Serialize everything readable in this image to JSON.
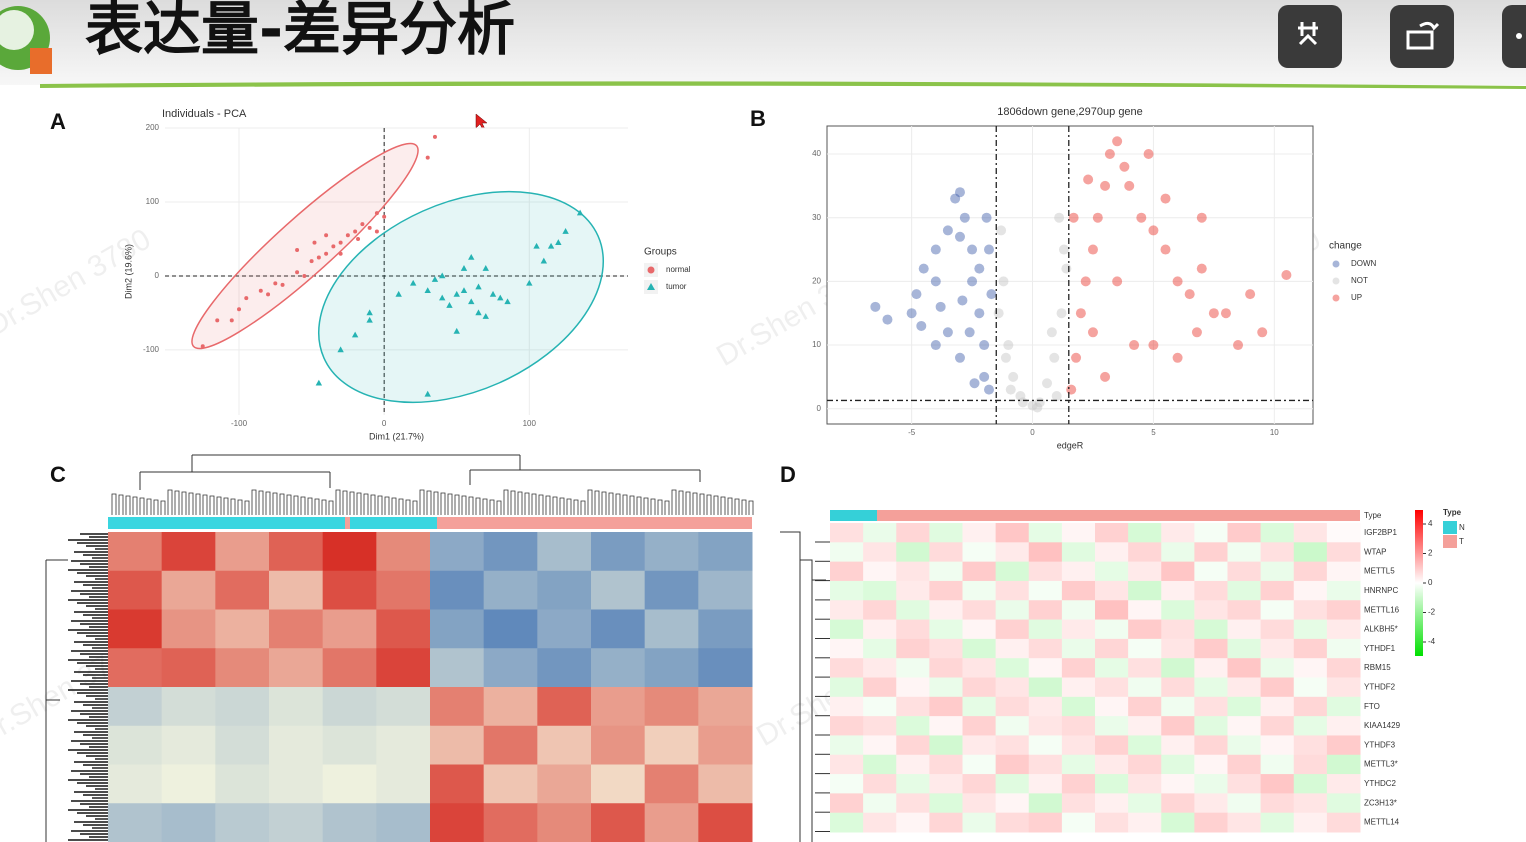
{
  "header": {
    "title": "表达量-差异分析"
  },
  "watermark": "Dr.Shen 3780",
  "panel_a": {
    "label": "A",
    "type": "scatter",
    "title": "Individuals - PCA",
    "xlabel": "Dim1 (21.7%)",
    "ylabel": "Dim2 (19.6%)",
    "xlim": [
      -151,
      168
    ],
    "ylim": [
      -188,
      200
    ],
    "xticks": [
      -100,
      0,
      100
    ],
    "yticks": [
      -100,
      0,
      100,
      200
    ],
    "grid": true,
    "legend_title": "Groups",
    "series": [
      {
        "name": "normal",
        "color": "#e8696b",
        "marker": "circle",
        "points": [
          [
            -125,
            -95
          ],
          [
            -115,
            -60
          ],
          [
            -105,
            -60
          ],
          [
            -100,
            -45
          ],
          [
            -85,
            -20
          ],
          [
            -80,
            -25
          ],
          [
            -75,
            -10
          ],
          [
            -60,
            5
          ],
          [
            -55,
            0
          ],
          [
            -50,
            20
          ],
          [
            -45,
            25
          ],
          [
            -40,
            30
          ],
          [
            -35,
            40
          ],
          [
            -30,
            45
          ],
          [
            -25,
            55
          ],
          [
            -20,
            60
          ],
          [
            -15,
            70
          ],
          [
            -10,
            65
          ],
          [
            -5,
            85
          ],
          [
            0,
            80
          ],
          [
            -30,
            30
          ],
          [
            -60,
            35
          ],
          [
            -40,
            55
          ],
          [
            30,
            160
          ],
          [
            35,
            188
          ],
          [
            -18,
            50
          ],
          [
            -48,
            45
          ],
          [
            -70,
            -12
          ],
          [
            -95,
            -30
          ],
          [
            -5,
            60
          ]
        ]
      },
      {
        "name": "tumor",
        "color": "#26b3b3",
        "marker": "triangle",
        "points": [
          [
            -45,
            -145
          ],
          [
            -30,
            -100
          ],
          [
            -20,
            -80
          ],
          [
            -10,
            -60
          ],
          [
            10,
            -25
          ],
          [
            20,
            -10
          ],
          [
            30,
            -20
          ],
          [
            35,
            -5
          ],
          [
            40,
            -30
          ],
          [
            45,
            -40
          ],
          [
            50,
            -25
          ],
          [
            55,
            -20
          ],
          [
            60,
            -35
          ],
          [
            65,
            -15
          ],
          [
            70,
            -55
          ],
          [
            75,
            -25
          ],
          [
            80,
            -30
          ],
          [
            55,
            10
          ],
          [
            60,
            25
          ],
          [
            65,
            -50
          ],
          [
            100,
            -10
          ],
          [
            110,
            20
          ],
          [
            115,
            40
          ],
          [
            120,
            45
          ],
          [
            135,
            85
          ],
          [
            125,
            60
          ],
          [
            105,
            40
          ],
          [
            50,
            -75
          ],
          [
            30,
            -160
          ],
          [
            -10,
            -50
          ],
          [
            40,
            0
          ],
          [
            85,
            -35
          ],
          [
            70,
            10
          ]
        ]
      }
    ]
  },
  "panel_b": {
    "label": "B",
    "type": "scatter",
    "title": "1806down gene,2970up gene",
    "xlabel": "edgeR",
    "xlim": [
      -8.5,
      11.6
    ],
    "ylim": [
      -2.4,
      44.4
    ],
    "xticks": [
      -5,
      0,
      5,
      10
    ],
    "yticks": [
      0,
      10,
      20,
      30,
      40
    ],
    "vlines": [
      -1.5,
      1.5
    ],
    "hline": 1.3,
    "grid": true,
    "legend_title": "change",
    "series": [
      {
        "name": "DOWN",
        "color": "#3b5ba9",
        "marker": "circle",
        "points": [
          [
            -6.5,
            16
          ],
          [
            -6,
            14
          ],
          [
            -5,
            15
          ],
          [
            -4.8,
            18
          ],
          [
            -4.5,
            22
          ],
          [
            -4,
            20
          ],
          [
            -4,
            25
          ],
          [
            -3.5,
            28
          ],
          [
            -3.2,
            33
          ],
          [
            -3,
            34
          ],
          [
            -3,
            27
          ],
          [
            -2.8,
            30
          ],
          [
            -2.5,
            25
          ],
          [
            -2.5,
            20
          ],
          [
            -2.2,
            15
          ],
          [
            -2,
            10
          ],
          [
            -2,
            5
          ],
          [
            -1.8,
            3
          ],
          [
            -3.5,
            12
          ],
          [
            -3,
            8
          ],
          [
            -4,
            10
          ],
          [
            -2.6,
            12
          ],
          [
            -2.2,
            22
          ],
          [
            -1.8,
            25
          ],
          [
            -1.7,
            18
          ],
          [
            -3.8,
            16
          ],
          [
            -2.4,
            4
          ],
          [
            -2.9,
            17
          ],
          [
            -1.9,
            30
          ],
          [
            -4.6,
            13
          ]
        ]
      },
      {
        "name": "NOT",
        "color": "#c4c4c4",
        "marker": "circle",
        "points": [
          [
            -1.2,
            20
          ],
          [
            -1,
            10
          ],
          [
            -0.8,
            5
          ],
          [
            -0.5,
            2
          ],
          [
            0,
            0.5
          ],
          [
            0.3,
            1
          ],
          [
            0.6,
            4
          ],
          [
            0.9,
            8
          ],
          [
            1.2,
            15
          ],
          [
            1.3,
            25
          ],
          [
            1.1,
            30
          ],
          [
            -1.3,
            28
          ],
          [
            -1.4,
            15
          ],
          [
            -0.9,
            3
          ],
          [
            0.2,
            0.2
          ],
          [
            1.4,
            22
          ],
          [
            -0.4,
            1
          ],
          [
            0.8,
            12
          ],
          [
            -1.1,
            8
          ],
          [
            1,
            2
          ]
        ]
      },
      {
        "name": "UP",
        "color": "#e8332a",
        "marker": "circle",
        "points": [
          [
            1.6,
            3
          ],
          [
            1.8,
            8
          ],
          [
            2,
            15
          ],
          [
            2.2,
            20
          ],
          [
            2.5,
            25
          ],
          [
            2.7,
            30
          ],
          [
            3,
            35
          ],
          [
            3.2,
            40
          ],
          [
            3.5,
            42
          ],
          [
            3.8,
            38
          ],
          [
            4,
            35
          ],
          [
            4.5,
            30
          ],
          [
            5,
            28
          ],
          [
            5.5,
            25
          ],
          [
            6,
            20
          ],
          [
            6.5,
            18
          ],
          [
            7,
            22
          ],
          [
            7.5,
            15
          ],
          [
            8,
            15
          ],
          [
            9,
            18
          ],
          [
            9.5,
            12
          ],
          [
            10.5,
            21
          ],
          [
            4.2,
            10
          ],
          [
            3,
            5
          ],
          [
            5,
            10
          ],
          [
            6,
            8
          ],
          [
            2.5,
            12
          ],
          [
            7,
            30
          ],
          [
            5.5,
            33
          ],
          [
            3.5,
            20
          ],
          [
            8.5,
            10
          ],
          [
            1.7,
            30
          ],
          [
            2.3,
            36
          ],
          [
            4.8,
            40
          ],
          [
            6.8,
            12
          ]
        ]
      }
    ]
  },
  "panel_c": {
    "label": "C",
    "type": "heatmap",
    "colors": [
      "#4575b4",
      "#f7f7e0",
      "#d73027"
    ],
    "range": [
      -2,
      2
    ],
    "values": [
      [
        1.2,
        1.8,
        0.9,
        1.5,
        2.0,
        1.1,
        -1.2,
        -1.5,
        -0.9,
        -1.4,
        -1.1,
        -1.3
      ],
      [
        1.6,
        0.8,
        1.4,
        0.6,
        1.7,
        1.3,
        -1.6,
        -1.1,
        -1.3,
        -0.8,
        -1.5,
        -1.0
      ],
      [
        1.9,
        1.0,
        0.7,
        1.2,
        0.9,
        1.6,
        -1.3,
        -1.7,
        -1.2,
        -1.6,
        -0.9,
        -1.4
      ],
      [
        1.4,
        1.5,
        1.1,
        0.8,
        1.3,
        1.8,
        -0.8,
        -1.2,
        -1.5,
        -1.1,
        -1.3,
        -1.6
      ],
      [
        -0.6,
        -0.4,
        -0.5,
        -0.3,
        -0.5,
        -0.4,
        1.2,
        0.7,
        1.5,
        0.9,
        1.1,
        0.8
      ],
      [
        -0.3,
        -0.2,
        -0.4,
        -0.2,
        -0.3,
        -0.2,
        0.6,
        1.3,
        0.5,
        1.0,
        0.4,
        0.9
      ],
      [
        -0.2,
        -0.1,
        -0.3,
        -0.2,
        -0.1,
        -0.2,
        1.6,
        0.5,
        0.8,
        0.3,
        1.2,
        0.6
      ],
      [
        -0.8,
        -0.9,
        -0.7,
        -0.6,
        -0.8,
        -0.9,
        1.8,
        1.4,
        1.1,
        1.6,
        0.9,
        1.7
      ]
    ]
  },
  "panel_d": {
    "label": "D",
    "type": "heatmap",
    "annotation_label": "Type",
    "rows": [
      "IGF2BP1",
      "WTAP",
      "METTL5",
      "HNRNPC",
      "METTL16",
      "ALKBH5*",
      "YTHDF1",
      "RBM15",
      "YTHDF2",
      "FTO",
      "KIAA1429",
      "YTHDF3",
      "METTL3*",
      "YTHDC2",
      "ZC3H13*",
      "METTL14"
    ],
    "values": [
      [
        0.6,
        -0.4,
        0.8,
        -0.6,
        0.3,
        1.1,
        -0.5,
        0.2,
        0.9,
        -0.8,
        0.4,
        -0.2,
        1.0,
        -0.7,
        0.5,
        0.1
      ],
      [
        -0.3,
        0.5,
        -0.9,
        0.7,
        -0.2,
        0.4,
        1.2,
        -0.6,
        0.3,
        0.8,
        -0.4,
        0.9,
        -0.3,
        0.6,
        -1.0,
        0.7
      ],
      [
        0.9,
        0.2,
        0.5,
        -0.3,
        1.0,
        -0.8,
        0.6,
        0.3,
        -0.5,
        0.4,
        1.1,
        -0.2,
        0.7,
        -0.4,
        0.8,
        0.2
      ],
      [
        -0.5,
        -0.7,
        0.4,
        0.9,
        -0.3,
        0.6,
        -0.2,
        1.0,
        0.5,
        -0.9,
        0.3,
        0.7,
        -0.6,
        0.9,
        0.2,
        -0.4
      ],
      [
        0.4,
        0.8,
        -0.6,
        0.3,
        0.7,
        -0.4,
        0.9,
        -0.3,
        1.2,
        0.2,
        -0.7,
        0.5,
        0.8,
        -0.2,
        0.6,
        0.9
      ],
      [
        -0.8,
        0.3,
        0.7,
        -0.5,
        0.2,
        0.9,
        -0.6,
        0.4,
        -0.3,
        1.0,
        0.6,
        -0.8,
        0.3,
        0.7,
        -0.5,
        0.4
      ],
      [
        0.2,
        -0.5,
        0.9,
        0.6,
        -0.8,
        0.3,
        0.7,
        -0.4,
        0.8,
        -0.2,
        0.5,
        1.0,
        -0.6,
        0.4,
        0.9,
        -0.3
      ],
      [
        0.7,
        0.4,
        -0.3,
        0.8,
        0.5,
        -0.7,
        0.2,
        0.9,
        -0.5,
        0.6,
        -0.9,
        0.3,
        1.1,
        -0.4,
        0.2,
        0.8
      ],
      [
        -0.6,
        0.9,
        0.2,
        -0.4,
        0.8,
        0.5,
        -0.9,
        0.3,
        0.6,
        -0.3,
        0.7,
        -0.5,
        0.4,
        1.0,
        -0.2,
        0.5
      ],
      [
        0.3,
        -0.2,
        0.6,
        1.0,
        -0.5,
        0.7,
        0.4,
        -0.8,
        0.2,
        0.9,
        -0.3,
        0.6,
        -0.7,
        0.3,
        0.8,
        -0.6
      ],
      [
        0.8,
        0.6,
        -0.7,
        0.2,
        0.9,
        -0.3,
        0.5,
        0.7,
        -0.4,
        0.3,
        1.0,
        -0.6,
        0.2,
        0.8,
        -0.5,
        0.3
      ],
      [
        -0.4,
        0.2,
        0.8,
        -0.9,
        0.4,
        0.6,
        -0.2,
        0.5,
        0.9,
        -0.7,
        0.3,
        0.8,
        -0.4,
        0.2,
        0.6,
        1.0
      ],
      [
        0.5,
        -0.8,
        0.3,
        0.7,
        -0.2,
        1.0,
        0.6,
        -0.5,
        0.4,
        0.8,
        -0.6,
        0.2,
        0.9,
        -0.3,
        0.7,
        -0.9
      ],
      [
        -0.2,
        0.7,
        -0.5,
        0.4,
        0.8,
        -0.6,
        0.3,
        0.9,
        -0.7,
        0.5,
        0.2,
        -0.4,
        0.6,
        1.1,
        -0.8,
        0.4
      ],
      [
        0.9,
        -0.3,
        0.6,
        -0.7,
        0.5,
        0.2,
        -0.9,
        0.6,
        0.3,
        -0.5,
        0.8,
        0.4,
        -0.3,
        0.7,
        0.5,
        -0.6
      ],
      [
        -0.7,
        0.5,
        0.2,
        0.8,
        -0.4,
        0.7,
        0.9,
        -0.2,
        0.6,
        0.3,
        -0.8,
        0.9,
        0.5,
        -0.6,
        0.3,
        0.7
      ]
    ],
    "colorbar": {
      "ticks": [
        4,
        2,
        0,
        -2,
        -4
      ],
      "lim": [
        -4.95,
        4.95
      ],
      "colors": [
        "#00e000",
        "#ffffff",
        "#ff0000"
      ]
    },
    "legend": {
      "title": "Type",
      "items": [
        {
          "name": "N",
          "color": "#35d0d8"
        },
        {
          "name": "T",
          "color": "#f4a09a"
        }
      ]
    }
  }
}
